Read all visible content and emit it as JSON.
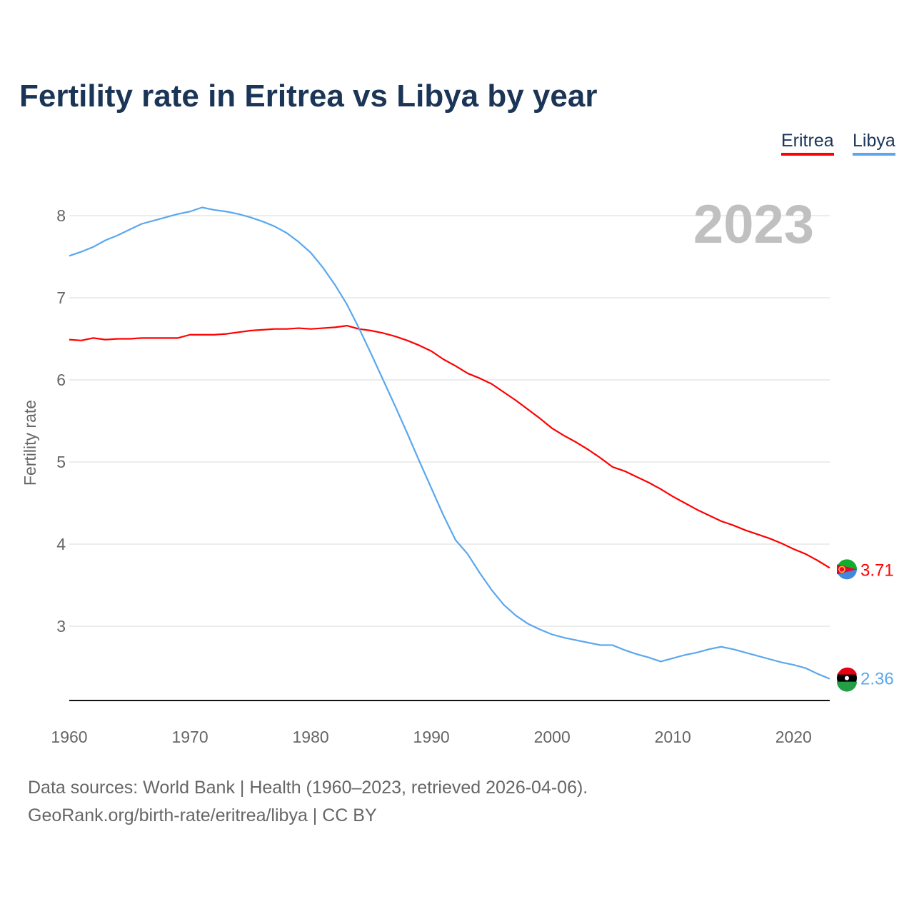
{
  "chart_data": {
    "type": "line",
    "title": "Fertility rate in Eritrea vs Libya by year",
    "ylabel": "Fertility rate",
    "xlabel": "",
    "year_label": "2023",
    "xlim": [
      1960,
      2023
    ],
    "ylim": [
      2.1,
      8.6
    ],
    "xticks": [
      1960,
      1970,
      1980,
      1990,
      2000,
      2010,
      2020
    ],
    "yticks": [
      3,
      4,
      5,
      6,
      7,
      8
    ],
    "grid": true,
    "legend_position": "top-right",
    "x": [
      1960,
      1961,
      1962,
      1963,
      1964,
      1965,
      1966,
      1967,
      1968,
      1969,
      1970,
      1971,
      1972,
      1973,
      1974,
      1975,
      1976,
      1977,
      1978,
      1979,
      1980,
      1981,
      1982,
      1983,
      1984,
      1985,
      1986,
      1987,
      1988,
      1989,
      1990,
      1991,
      1992,
      1993,
      1994,
      1995,
      1996,
      1997,
      1998,
      1999,
      2000,
      2001,
      2002,
      2003,
      2004,
      2005,
      2006,
      2007,
      2008,
      2009,
      2010,
      2011,
      2012,
      2013,
      2014,
      2015,
      2016,
      2017,
      2018,
      2019,
      2020,
      2021,
      2022,
      2023
    ],
    "series": [
      {
        "name": "Eritrea",
        "color": "#ff0000",
        "end_label": "3.71",
        "values": [
          6.49,
          6.48,
          6.51,
          6.49,
          6.5,
          6.5,
          6.51,
          6.51,
          6.51,
          6.51,
          6.55,
          6.55,
          6.55,
          6.56,
          6.58,
          6.6,
          6.61,
          6.62,
          6.62,
          6.63,
          6.62,
          6.63,
          6.64,
          6.66,
          6.62,
          6.6,
          6.57,
          6.53,
          6.48,
          6.42,
          6.35,
          6.25,
          6.17,
          6.08,
          6.02,
          5.95,
          5.85,
          5.75,
          5.64,
          5.53,
          5.41,
          5.32,
          5.24,
          5.15,
          5.05,
          4.94,
          4.89,
          4.82,
          4.75,
          4.67,
          4.58,
          4.5,
          4.42,
          4.35,
          4.28,
          4.23,
          4.17,
          4.12,
          4.07,
          4.01,
          3.94,
          3.88,
          3.8,
          3.71
        ]
      },
      {
        "name": "Libya",
        "color": "#5aa7ee",
        "end_label": "2.36",
        "values": [
          7.51,
          7.56,
          7.62,
          7.7,
          7.76,
          7.83,
          7.9,
          7.94,
          7.98,
          8.02,
          8.05,
          8.1,
          8.07,
          8.05,
          8.02,
          7.98,
          7.93,
          7.87,
          7.79,
          7.68,
          7.55,
          7.37,
          7.16,
          6.92,
          6.63,
          6.32,
          6.0,
          5.68,
          5.35,
          5.01,
          4.68,
          4.35,
          4.05,
          3.88,
          3.65,
          3.44,
          3.26,
          3.13,
          3.03,
          2.96,
          2.9,
          2.86,
          2.83,
          2.8,
          2.77,
          2.77,
          2.71,
          2.66,
          2.62,
          2.57,
          2.61,
          2.65,
          2.68,
          2.72,
          2.75,
          2.72,
          2.68,
          2.64,
          2.6,
          2.56,
          2.53,
          2.49,
          2.42,
          2.36
        ]
      }
    ]
  },
  "legend": {
    "eritrea": "Eritrea",
    "libya": "Libya"
  },
  "footer": {
    "line1": "Data sources: World Bank | Health (1960–2023, retrieved 2026-04-06).",
    "line2": "GeoRank.org/birth-rate/eritrea/libya | CC BY"
  }
}
